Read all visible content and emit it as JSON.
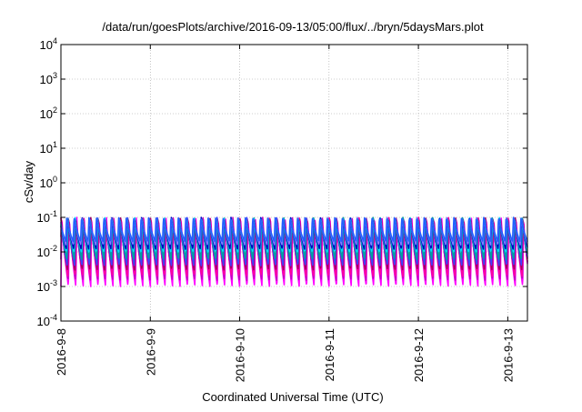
{
  "chart_data": {
    "type": "line",
    "title": "/data/run/goesPlots/archive/2016-09-13/05:00/flux/../bryn/5daysMars.plot",
    "xlabel": "Coordinated Universal Time (UTC)",
    "ylabel": "cSv/day",
    "y_scale": "log",
    "ylim": [
      0.0001,
      10000
    ],
    "y_ticks": [
      {
        "value": 0.0001,
        "base": "10",
        "exp": "-4"
      },
      {
        "value": 0.001,
        "base": "10",
        "exp": "-3"
      },
      {
        "value": 0.01,
        "base": "10",
        "exp": "-2"
      },
      {
        "value": 0.1,
        "base": "10",
        "exp": "-1"
      },
      {
        "value": 1,
        "base": "10",
        "exp": "0"
      },
      {
        "value": 10,
        "base": "10",
        "exp": "1"
      },
      {
        "value": 100,
        "base": "10",
        "exp": "2"
      },
      {
        "value": 1000,
        "base": "10",
        "exp": "3"
      },
      {
        "value": 10000,
        "base": "10",
        "exp": "4"
      }
    ],
    "x_unit": "days",
    "xlim": [
      0,
      5.22
    ],
    "x_ticks": [
      {
        "value": 0,
        "label": "2016-9-8"
      },
      {
        "value": 1,
        "label": "2016-9-9"
      },
      {
        "value": 2,
        "label": "2016-9-10"
      },
      {
        "value": 3,
        "label": "2016-9-11"
      },
      {
        "value": 4,
        "label": "2016-9-12"
      },
      {
        "value": 5,
        "label": "2016-9-13"
      }
    ],
    "grid": true,
    "legend": "none",
    "pattern": {
      "cycles_per_day": 12,
      "peak": 0.1,
      "note": "repeating sawtooth: sharp rise to ~0.1, then decay"
    },
    "series": [
      {
        "color": "#ff00ff",
        "min": 0.001,
        "phase": 0.0
      },
      {
        "color": "#c000c0",
        "min": 0.0015,
        "phase": 0.04
      },
      {
        "color": "#ff00a0",
        "min": 0.002,
        "phase": 0.08
      },
      {
        "color": "#a00060",
        "min": 0.003,
        "phase": 0.12
      },
      {
        "color": "#4040ff",
        "min": 0.004,
        "phase": 0.16
      },
      {
        "color": "#00a0a0",
        "min": 0.006,
        "phase": 0.2
      },
      {
        "color": "#00e0ff",
        "min": 0.01,
        "phase": 0.24
      },
      {
        "color": "#0000c0",
        "min": 0.012,
        "phase": 0.28
      },
      {
        "color": "#8080ff",
        "min": 0.016,
        "phase": 0.32
      },
      {
        "color": "#2060ff",
        "min": 0.02,
        "phase": 0.36
      }
    ]
  }
}
